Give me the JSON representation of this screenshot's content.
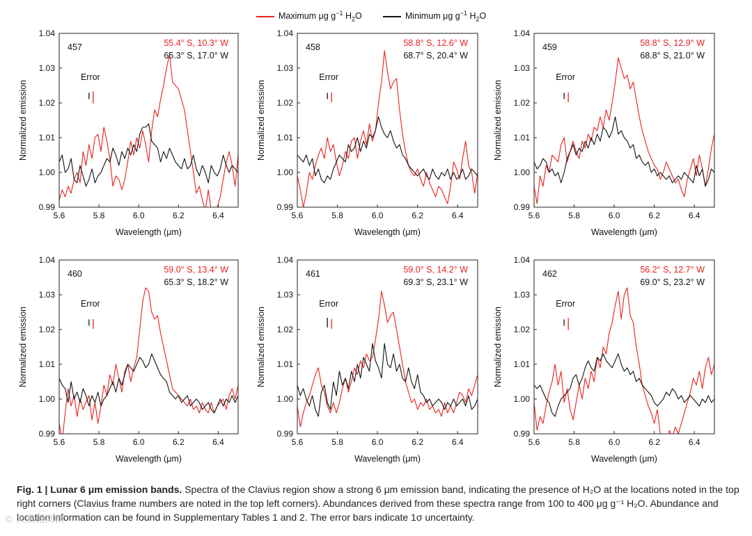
{
  "legend": {
    "max_label": "Maximum μg g",
    "max_sup": "−1",
    "max_tail": " H",
    "max_sub": "2",
    "max_end": "O",
    "min_label": "Minimum μg g",
    "min_sup": "−1",
    "min_tail": " H",
    "min_sub": "2",
    "min_end": "O"
  },
  "colors": {
    "max": "#e8211d",
    "min": "#111111"
  },
  "caption": {
    "lead": "Fig. 1 | Lunar 6 μm emission bands.",
    "body": " Spectra of the Clavius region show a strong 6 μm emission band, indicating the presence of H₂O at the locations noted in the top right corners (Clavius frame numbers are noted in the top left corners). Abundances derived from these spectra range from 100 to 400 μg g⁻¹ H₂O. Abundance and location information can be found in Supplementary Tables 1 and 2. The error bars indicate 1σ uncertainty."
  },
  "watermark": "© 大数据文摘",
  "chart_data": [
    {
      "type": "line",
      "frame": "457",
      "max_location": "55.4° S, 10.3° W",
      "min_location": "65.3° S, 17.0° W",
      "error_label": "Error",
      "error_max": 0.0035,
      "error_min": 0.0018,
      "xlabel": "Wavelength (μm)",
      "ylabel": "Normalized emission",
      "xlim": [
        5.6,
        6.5
      ],
      "ylim": [
        0.99,
        1.04
      ],
      "xticks": [
        "5.6",
        "5.8",
        "6.0",
        "6.2",
        "6.4"
      ],
      "yticks": [
        "0.99",
        "1.00",
        "1.01",
        "1.02",
        "1.03",
        "1.04"
      ],
      "x_start": 5.6,
      "x_step": 0.015,
      "series": [
        {
          "name": "Maximum",
          "values": [
            0.992,
            0.995,
            0.993,
            0.996,
            0.994,
            0.998,
            1.0,
            0.997,
            1.006,
            1.002,
            1.008,
            1.004,
            1.01,
            1.011,
            1.006,
            1.013,
            1.009,
            1.004,
            0.996,
            0.999,
            0.998,
            0.995,
            0.998,
            1.003,
            1.009,
            1.005,
            1.01,
            1.007,
            1.012,
            1.008,
            1.003,
            1.012,
            1.018,
            1.016,
            1.021,
            1.025,
            1.03,
            1.034,
            1.026,
            1.025,
            1.024,
            1.021,
            1.018,
            1.012,
            1.006,
            1.0,
            0.994,
            0.996,
            0.992,
            0.989,
            0.995,
            0.989,
            0.986,
            0.99,
            0.993,
            0.998,
            1.003,
            1.006,
            1.002,
            0.996,
            1.005,
            1.007
          ]
        },
        {
          "name": "Minimum",
          "values": [
            1.003,
            1.005,
            1.0,
            1.001,
            1.004,
            0.998,
            0.997,
            1.002,
            0.999,
            0.996,
            0.998,
            1.001,
            0.997,
            0.999,
            1.0,
            1.002,
            1.004,
            1.003,
            1.007,
            1.005,
            1.002,
            1.006,
            1.004,
            1.007,
            1.005,
            1.008,
            1.006,
            1.011,
            1.013,
            1.013,
            1.014,
            1.009,
            1.008,
            1.007,
            1.003,
            1.006,
            1.004,
            1.007,
            1.005,
            1.003,
            1.002,
            1.001,
            1.004,
            1.001,
            1.002,
            1.005,
            1.001,
            0.999,
            1.002,
            1.0,
            0.997,
            1.002,
            1.0,
            0.999,
            1.001,
            1.005,
            1.002,
            1.0,
            1.002,
            1.001,
            1.0,
            1.001
          ]
        }
      ]
    },
    {
      "type": "line",
      "frame": "458",
      "max_location": "58.8° S, 12.6° W",
      "min_location": "68.7° S, 20.4° W",
      "error_label": "Error",
      "error_max": 0.0028,
      "error_min": 0.0018,
      "xlabel": "Wavelength (μm)",
      "ylabel": "Normalized emission",
      "xlim": [
        5.6,
        6.5
      ],
      "ylim": [
        0.99,
        1.04
      ],
      "xticks": [
        "5.6",
        "5.8",
        "6.0",
        "6.2",
        "6.4"
      ],
      "yticks": [
        "0.99",
        "1.00",
        "1.01",
        "1.02",
        "1.03",
        "1.04"
      ],
      "x_start": 5.6,
      "x_step": 0.015,
      "series": [
        {
          "name": "Maximum",
          "values": [
            0.999,
            0.995,
            0.99,
            0.994,
            1.0,
            0.998,
            1.002,
            1.005,
            1.007,
            1.004,
            1.01,
            1.006,
            1.008,
            1.003,
            0.999,
            1.002,
            1.006,
            1.004,
            1.009,
            1.01,
            1.004,
            1.009,
            1.012,
            1.008,
            1.014,
            1.009,
            1.012,
            1.02,
            1.026,
            1.035,
            1.029,
            1.024,
            1.026,
            1.027,
            1.018,
            1.011,
            1.006,
            1.002,
            1.0,
            0.999,
            1.001,
            0.998,
            0.996,
            1.0,
            0.997,
            0.995,
            0.993,
            0.996,
            0.995,
            0.993,
            0.991,
            0.996,
            1.003,
            1.001,
            0.998,
            1.004,
            1.009,
            1.002,
            1.0,
            0.994,
            1.0,
            1.01
          ]
        },
        {
          "name": "Minimum",
          "values": [
            1.005,
            1.004,
            1.003,
            1.005,
            1.002,
            1.004,
            0.999,
            1.001,
            0.998,
            0.997,
            0.999,
            0.998,
            1.001,
            1.003,
            1.005,
            1.004,
            1.003,
            1.008,
            1.006,
            1.007,
            1.01,
            1.006,
            1.009,
            1.007,
            1.011,
            1.01,
            1.012,
            1.016,
            1.013,
            1.011,
            1.01,
            1.012,
            1.009,
            1.007,
            1.008,
            1.005,
            1.004,
            1.002,
            1.001,
            1.0,
            0.999,
            1.0,
            1.001,
            0.999,
            0.998,
            1.001,
            0.999,
            0.998,
            1.0,
            0.999,
            1.001,
            0.998,
            1.0,
            0.998,
            0.999,
            1.001,
            0.998,
            0.999,
            1.001,
            1.0,
            0.999,
            1.0
          ]
        }
      ]
    },
    {
      "type": "line",
      "frame": "459",
      "max_location": "58.8° S, 12.9° W",
      "min_location": "68.8° S, 21.0° W",
      "error_label": "Error",
      "error_max": 0.0028,
      "error_min": 0.0018,
      "xlabel": "Wavelength (μm)",
      "ylabel": "Normalized emission",
      "xlim": [
        5.6,
        6.5
      ],
      "ylim": [
        0.99,
        1.04
      ],
      "xticks": [
        "5.6",
        "5.8",
        "6.0",
        "6.2",
        "6.4"
      ],
      "yticks": [
        "0.99",
        "1.00",
        "1.01",
        "1.02",
        "1.03",
        "1.04"
      ],
      "x_start": 5.6,
      "x_step": 0.015,
      "series": [
        {
          "name": "Maximum",
          "values": [
            0.996,
            0.991,
            0.999,
            0.996,
            1.002,
            1.0,
            1.005,
            1.004,
            1.003,
            1.008,
            1.01,
            1.003,
            1.006,
            1.009,
            1.006,
            1.004,
            1.009,
            1.007,
            1.011,
            1.009,
            1.013,
            1.012,
            1.016,
            1.013,
            1.018,
            1.015,
            1.02,
            1.026,
            1.033,
            1.03,
            1.027,
            1.028,
            1.024,
            1.026,
            1.021,
            1.016,
            1.012,
            1.009,
            1.006,
            1.004,
            1.002,
            1.001,
            0.998,
            1.0,
            1.003,
            1.001,
            0.999,
            0.997,
            0.998,
            0.995,
            0.993,
            0.998,
            1.001,
            1.004,
            0.999,
            1.005,
            1.001,
            0.996,
            1.001,
            1.007,
            1.011,
            1.009
          ]
        },
        {
          "name": "Minimum",
          "values": [
            1.003,
            1.001,
            1.002,
            1.004,
            1.003,
            1.0,
            1.001,
            0.999,
            1.0,
            0.997,
            1.0,
            1.004,
            1.006,
            1.008,
            1.005,
            1.007,
            1.006,
            1.009,
            1.007,
            1.01,
            1.008,
            1.011,
            1.009,
            1.013,
            1.012,
            1.01,
            1.012,
            1.016,
            1.011,
            1.012,
            1.01,
            1.009,
            1.007,
            1.008,
            1.004,
            1.005,
            1.003,
            1.002,
            1.003,
            1.0,
            1.001,
            0.999,
            1.0,
            0.999,
            0.998,
            0.999,
            0.997,
            0.998,
            0.999,
            0.998,
            1.0,
            0.999,
            0.998,
            0.997,
            1.002,
            0.999,
            1.001,
            0.996,
            0.998,
            1.001,
            1.0,
            1.001
          ]
        }
      ]
    },
    {
      "type": "line",
      "frame": "460",
      "max_location": "59.0° S, 13.4° W",
      "min_location": "65.3° S, 18.2° W",
      "error_label": "Error",
      "error_max": 0.0028,
      "error_min": 0.0018,
      "xlabel": "Wavelength (μm)",
      "ylabel": "Normalized emission",
      "xlim": [
        5.6,
        6.5
      ],
      "ylim": [
        0.99,
        1.04
      ],
      "xticks": [
        "5.6",
        "5.8",
        "6.0",
        "6.2",
        "6.4"
      ],
      "yticks": [
        "0.99",
        "1.00",
        "1.01",
        "1.02",
        "1.03",
        "1.04"
      ],
      "x_start": 5.6,
      "x_step": 0.015,
      "series": [
        {
          "name": "Maximum",
          "values": [
            0.993,
            0.988,
            0.996,
            1.003,
            0.998,
            1.001,
            0.995,
            1.0,
            0.997,
            0.999,
            1.001,
            0.994,
            0.999,
            0.993,
            0.998,
            1.004,
            1.001,
            1.007,
            1.004,
            1.01,
            1.006,
            1.002,
            1.008,
            1.01,
            1.005,
            1.009,
            1.012,
            1.02,
            1.028,
            1.032,
            1.031,
            1.025,
            1.023,
            1.024,
            1.019,
            1.015,
            1.011,
            1.007,
            1.003,
            1.002,
            1.001,
            1.0,
            0.999,
            0.998,
            1.0,
            0.997,
            0.998,
            0.996,
            0.999,
            0.997,
            0.996,
            0.999,
            0.996,
            0.998,
            0.999,
            1.0,
            0.997,
            1.001,
            1.003,
            1.0,
            1.004,
            1.008
          ]
        },
        {
          "name": "Minimum",
          "values": [
            1.006,
            1.004,
            1.003,
            0.999,
            1.005,
            1.0,
            1.002,
            0.999,
            1.003,
            1.001,
            0.998,
            1.001,
            0.999,
            1.002,
            0.998,
            1.0,
            1.001,
            1.003,
            1.005,
            1.002,
            1.006,
            1.004,
            1.007,
            1.01,
            1.009,
            1.008,
            1.01,
            1.012,
            1.011,
            1.009,
            1.01,
            1.013,
            1.011,
            1.009,
            1.007,
            1.006,
            1.005,
            1.002,
            1.001,
            1.0,
            1.001,
            0.999,
            1.0,
            1.001,
            0.998,
            0.999,
            1.0,
            0.999,
            0.997,
            0.998,
            0.999,
            0.997,
            0.996,
            0.998,
            1.0,
            0.998,
            1.0,
            0.999,
            1.001,
            0.999,
            1.001,
            1.002
          ]
        }
      ]
    },
    {
      "type": "line",
      "frame": "461",
      "max_location": "59.0° S, 14.2° W",
      "min_location": "69.3° S, 23.1° W",
      "error_label": "Error",
      "error_max": 0.0028,
      "error_min": 0.0028,
      "xlabel": "Wavelength (μm)",
      "ylabel": "Normalized emission",
      "xlim": [
        5.6,
        6.5
      ],
      "ylim": [
        0.99,
        1.04
      ],
      "xticks": [
        "5.6",
        "5.8",
        "6.0",
        "6.2",
        "6.4"
      ],
      "yticks": [
        "0.99",
        "1.00",
        "1.01",
        "1.02",
        "1.03",
        "1.04"
      ],
      "x_start": 5.6,
      "x_step": 0.015,
      "series": [
        {
          "name": "Maximum",
          "values": [
            0.998,
            0.992,
            0.996,
            0.999,
            1.001,
            1.004,
            1.007,
            1.009,
            1.004,
            1.002,
            0.998,
            0.996,
            0.999,
            0.996,
            0.999,
            1.003,
            1.006,
            1.002,
            1.005,
            1.009,
            1.007,
            1.011,
            1.009,
            1.013,
            1.011,
            1.012,
            1.017,
            1.023,
            1.031,
            1.027,
            1.022,
            1.024,
            1.025,
            1.02,
            1.015,
            1.01,
            1.005,
            1.002,
            0.999,
            1.0,
            0.997,
            0.999,
            0.998,
            1.0,
            0.997,
            0.998,
            0.996,
            0.997,
            0.995,
            0.999,
            0.996,
            0.998,
            0.996,
            0.999,
            1.002,
            1.001,
            0.999,
            1.003,
            1.001,
            1.004,
            1.007,
            1.007
          ]
        },
        {
          "name": "Minimum",
          "values": [
            1.004,
            1.001,
            1.003,
            1.0,
            0.998,
            1.001,
            0.997,
            0.995,
            1.002,
            1.004,
            0.999,
            0.997,
            1.005,
            1.001,
            1.008,
            1.004,
            1.006,
            1.003,
            1.008,
            1.005,
            1.01,
            1.006,
            1.012,
            1.01,
            1.008,
            1.016,
            1.011,
            1.009,
            1.006,
            1.016,
            1.01,
            1.009,
            1.013,
            1.008,
            1.01,
            1.006,
            1.005,
            1.009,
            1.005,
            1.003,
            1.007,
            1.002,
            1.001,
            0.999,
            1.0,
            0.998,
            0.999,
            1.0,
            0.999,
            0.997,
            0.999,
            0.998,
            1.0,
            0.998,
            0.999,
            1.0,
            0.998,
            1.001,
            0.997,
            0.998,
            1.0,
            0.995
          ]
        }
      ]
    },
    {
      "type": "line",
      "frame": "462",
      "max_location": "56.2° S, 12.7° W",
      "min_location": "69.0° S, 23.2° W",
      "error_label": "Error",
      "error_max": 0.0035,
      "error_min": 0.0018,
      "xlabel": "Wavelength (μm)",
      "ylabel": "Normalized emission",
      "xlim": [
        5.6,
        6.5
      ],
      "ylim": [
        0.99,
        1.04
      ],
      "xticks": [
        "5.6",
        "5.8",
        "6.0",
        "6.2",
        "6.4"
      ],
      "yticks": [
        "0.99",
        "1.00",
        "1.01",
        "1.02",
        "1.03",
        "1.04"
      ],
      "x_start": 5.6,
      "x_step": 0.015,
      "series": [
        {
          "name": "Maximum",
          "values": [
            0.999,
            0.991,
            0.995,
            0.993,
            0.998,
            1.002,
            1.005,
            1.01,
            1.004,
            1.008,
            0.999,
            1.003,
            0.997,
            0.994,
            0.999,
            1.004,
            1.0,
            1.006,
            1.003,
            1.008,
            1.005,
            1.012,
            1.009,
            1.015,
            1.013,
            1.019,
            1.022,
            1.027,
            1.031,
            1.023,
            1.03,
            1.032,
            1.024,
            1.022,
            1.015,
            1.01,
            1.004,
            1.001,
            0.998,
            0.996,
            0.993,
            0.997,
            0.99,
            0.988,
            0.986,
            0.991,
            0.989,
            0.992,
            0.99,
            0.993,
            0.996,
            0.999,
            1.002,
            1.006,
            1.004,
            1.008,
            1.003,
            1.009,
            1.012,
            1.007,
            1.01,
            1.011
          ]
        },
        {
          "name": "Minimum",
          "values": [
            1.004,
            1.003,
            1.004,
            1.002,
            1.0,
            0.999,
            0.996,
            0.995,
            0.998,
            1.0,
            1.001,
            1.002,
            1.003,
            1.006,
            1.007,
            1.004,
            1.006,
            1.009,
            1.011,
            1.009,
            1.008,
            1.012,
            1.011,
            1.013,
            1.011,
            1.01,
            1.009,
            1.011,
            1.013,
            1.01,
            1.008,
            1.009,
            1.007,
            1.008,
            1.005,
            1.006,
            1.004,
            1.003,
            1.002,
            1.001,
            0.999,
            0.998,
            0.999,
            1.0,
            1.002,
            1.001,
            1.003,
            1.002,
            1.0,
            1.001,
            0.999,
            1.0,
            1.001,
            1.0,
            0.999,
            0.998,
            1.0,
            0.999,
            1.001,
            0.999,
            1.0,
            1.0
          ]
        }
      ]
    }
  ]
}
